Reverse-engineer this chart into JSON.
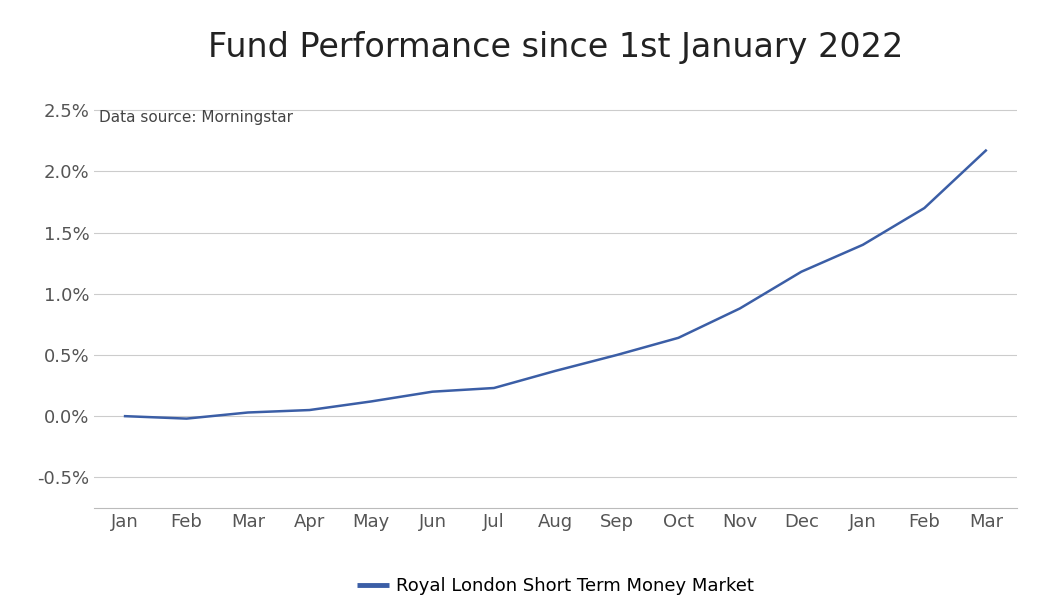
{
  "title": "Fund Performance since 1st January 2022",
  "data_source_label": "Data source: Morningstar",
  "legend_label": "Royal London Short Term Money Market",
  "x_labels": [
    "Jan",
    "Feb",
    "Mar",
    "Apr",
    "May",
    "Jun",
    "Jul",
    "Aug",
    "Sep",
    "Oct",
    "Nov",
    "Dec",
    "Jan",
    "Feb",
    "Mar"
  ],
  "y_values": [
    0.0,
    -0.02,
    0.03,
    0.05,
    0.12,
    0.2,
    0.23,
    0.37,
    0.5,
    0.64,
    0.88,
    1.18,
    1.4,
    1.7,
    2.17
  ],
  "ylim": [
    -0.75,
    2.75
  ],
  "yticks": [
    -0.5,
    0.0,
    0.5,
    1.0,
    1.5,
    2.0,
    2.5
  ],
  "line_color": "#3B5EA6",
  "line_width": 1.8,
  "bg_color": "#ffffff",
  "title_fontsize": 24,
  "axis_fontsize": 13,
  "source_fontsize": 11,
  "legend_fontsize": 13,
  "grid_color": "#cccccc",
  "tick_label_color": "#555555",
  "title_color": "#222222",
  "source_color": "#444444"
}
